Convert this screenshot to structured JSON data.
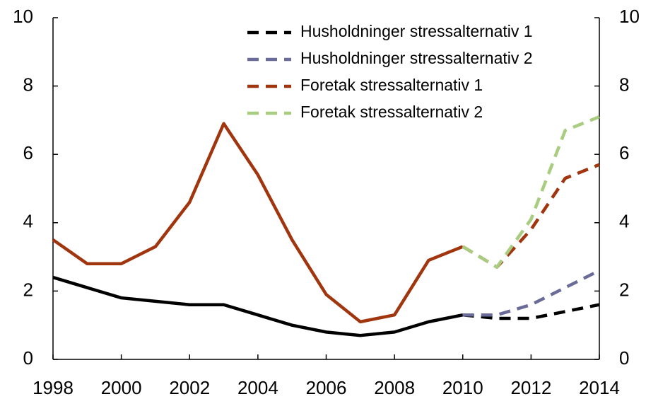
{
  "chart_data": {
    "type": "line",
    "x": [
      1998,
      1999,
      2000,
      2001,
      2002,
      2003,
      2004,
      2005,
      2006,
      2007,
      2008,
      2009,
      2010,
      2011,
      2012,
      2013,
      2014
    ],
    "series": [
      {
        "color": "#000000",
        "dashed": false,
        "values": [
          2.4,
          2.1,
          1.8,
          1.7,
          1.6,
          1.6,
          1.3,
          1.0,
          0.8,
          0.7,
          0.8,
          1.1,
          1.3,
          null,
          null,
          null,
          null
        ]
      },
      {
        "color": "#a0350e",
        "dashed": false,
        "values": [
          3.5,
          2.8,
          2.8,
          3.3,
          4.6,
          6.9,
          5.4,
          3.5,
          1.9,
          1.1,
          1.3,
          2.9,
          3.3,
          null,
          null,
          null,
          null
        ]
      },
      {
        "name": "Husholdninger stressalternativ 1",
        "color": "#000000",
        "dashed": true,
        "values": [
          null,
          null,
          null,
          null,
          null,
          null,
          null,
          null,
          null,
          null,
          null,
          null,
          1.3,
          1.2,
          1.2,
          1.4,
          1.6
        ]
      },
      {
        "name": "Husholdninger stressalternativ 2",
        "color": "#6b6b9a",
        "dashed": true,
        "values": [
          null,
          null,
          null,
          null,
          null,
          null,
          null,
          null,
          null,
          null,
          null,
          null,
          1.3,
          1.3,
          1.6,
          2.1,
          2.6
        ]
      },
      {
        "name": "Foretak  stressalternativ 1",
        "color": "#a0350e",
        "dashed": true,
        "values": [
          null,
          null,
          null,
          null,
          null,
          null,
          null,
          null,
          null,
          null,
          null,
          null,
          3.3,
          2.7,
          3.8,
          5.3,
          5.7
        ]
      },
      {
        "name": "Foretak  stressalternativ 2",
        "color": "#a8cc80",
        "dashed": true,
        "values": [
          null,
          null,
          null,
          null,
          null,
          null,
          null,
          null,
          null,
          null,
          null,
          null,
          3.3,
          2.7,
          4.1,
          6.7,
          7.1
        ]
      }
    ],
    "xlim": [
      1998,
      2014
    ],
    "xticks": [
      1998,
      2000,
      2002,
      2004,
      2006,
      2008,
      2010,
      2012,
      2014
    ],
    "ylim": [
      0,
      10
    ],
    "yticks": [
      0,
      2,
      4,
      6,
      8,
      10
    ],
    "y2lim": [
      0,
      10
    ],
    "y2ticks": [
      0,
      2,
      4,
      6,
      8,
      10
    ],
    "grid": false,
    "legend": "top"
  }
}
